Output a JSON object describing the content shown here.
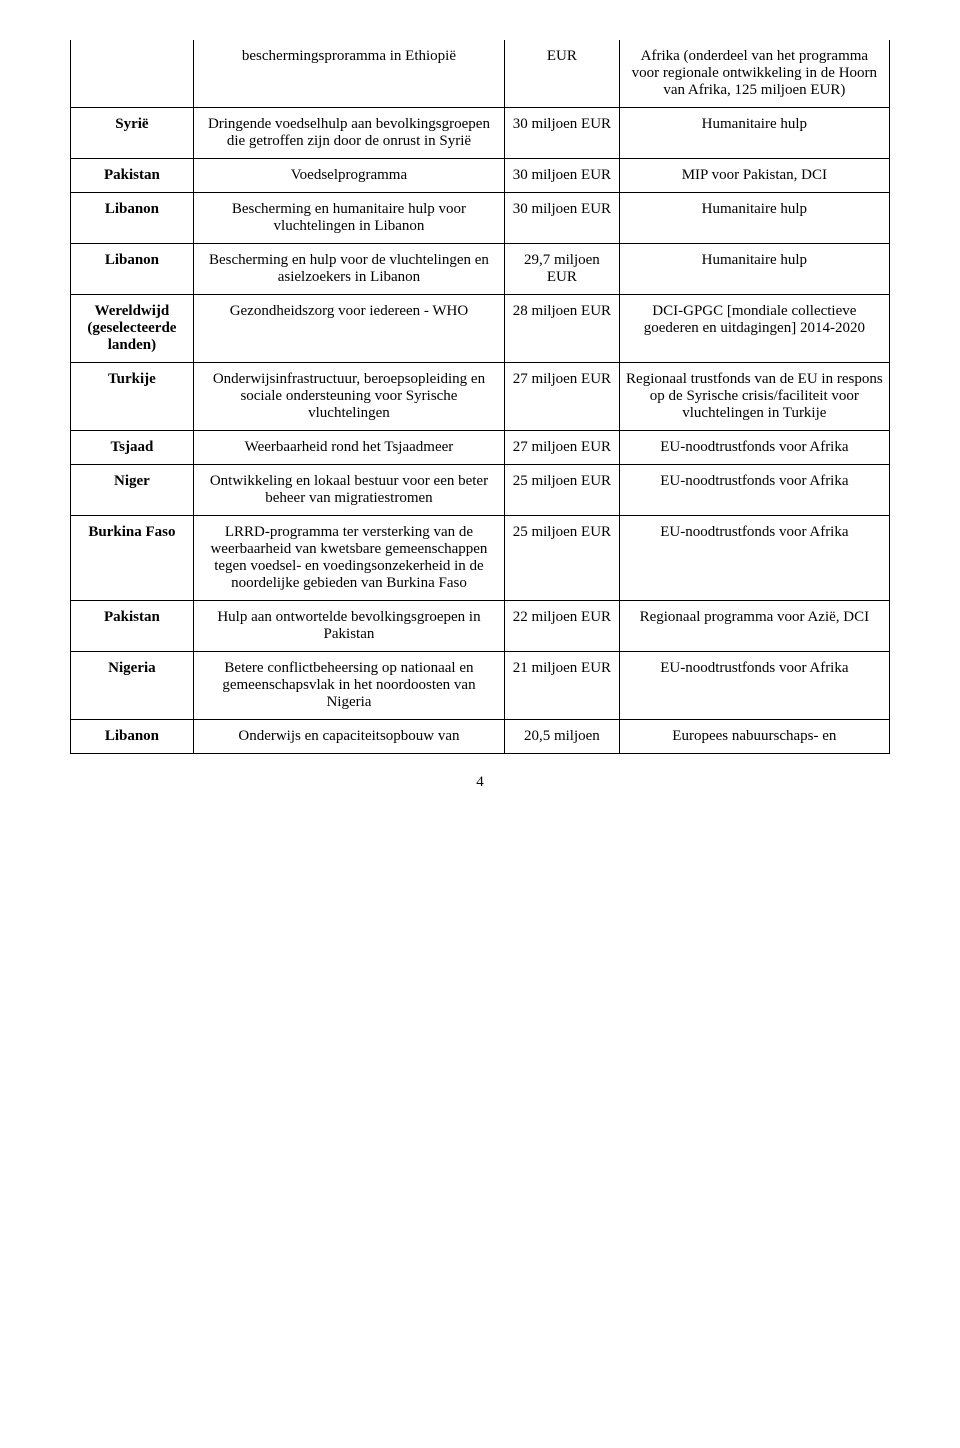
{
  "pageNumber": "4",
  "rows": [
    {
      "country": "",
      "program": "beschermingsproramma in Ethiopië",
      "amount": "EUR",
      "source": "Afrika (onderdeel van het programma voor regionale ontwikkeling in de Hoorn van Afrika, 125 miljoen EUR)",
      "noTopBorder": true
    },
    {
      "country": "Syrië",
      "program": "Dringende voedselhulp aan bevolkingsgroepen die getroffen zijn door de onrust in Syrië",
      "amount": "30 miljoen EUR",
      "source": "Humanitaire hulp"
    },
    {
      "country": "Pakistan",
      "program": "Voedselprogramma",
      "amount": "30 miljoen EUR",
      "source": "MIP voor Pakistan, DCI"
    },
    {
      "country": "Libanon",
      "program": "Bescherming en humanitaire hulp voor vluchtelingen in Libanon",
      "amount": "30 miljoen EUR",
      "source": "Humanitaire hulp"
    },
    {
      "country": "Libanon",
      "program": "Bescherming en hulp voor de vluchtelingen en asielzoekers in Libanon",
      "amount": "29,7 miljoen EUR",
      "source": "Humanitaire hulp"
    },
    {
      "country": "Wereldwijd (geselecteerde landen)",
      "program": "Gezondheidszorg voor iedereen - WHO",
      "amount": "28 miljoen EUR",
      "source": "DCI-GPGC [mondiale collectieve goederen en uitdagingen] 2014-2020"
    },
    {
      "country": "Turkije",
      "program": "Onderwijsinfrastructuur, beroepsopleiding en sociale ondersteuning voor Syrische vluchtelingen",
      "amount": "27 miljoen EUR",
      "source": "Regionaal trustfonds van de EU in respons op de Syrische crisis/faciliteit voor vluchtelingen in Turkije"
    },
    {
      "country": "Tsjaad",
      "program": "Weerbaarheid rond het Tsjaadmeer",
      "amount": "27 miljoen EUR",
      "source": "EU-noodtrustfonds voor Afrika"
    },
    {
      "country": "Niger",
      "program": "Ontwikkeling en lokaal bestuur voor een beter beheer van migratiestromen",
      "amount": "25 miljoen EUR",
      "source": "EU-noodtrustfonds voor Afrika"
    },
    {
      "country": "Burkina Faso",
      "program": "LRRD-programma ter versterking van de weerbaarheid van kwetsbare gemeenschappen tegen voedsel- en voedingsonzekerheid in de noordelijke gebieden van Burkina Faso",
      "amount": "25 miljoen EUR",
      "source": "EU-noodtrustfonds voor Afrika"
    },
    {
      "country": "Pakistan",
      "program": "Hulp aan ontwortelde bevolkingsgroepen in Pakistan",
      "amount": "22 miljoen EUR",
      "source": "Regionaal programma voor Azië, DCI"
    },
    {
      "country": "Nigeria",
      "program": "Betere conflictbeheersing op nationaal en gemeenschapsvlak in het noordoosten van Nigeria",
      "amount": "21 miljoen EUR",
      "source": "EU-noodtrustfonds voor Afrika"
    },
    {
      "country": "Libanon",
      "program": "Onderwijs en capaciteitsopbouw van",
      "amount": "20,5 miljoen",
      "source": "Europees nabuurschaps- en"
    }
  ]
}
